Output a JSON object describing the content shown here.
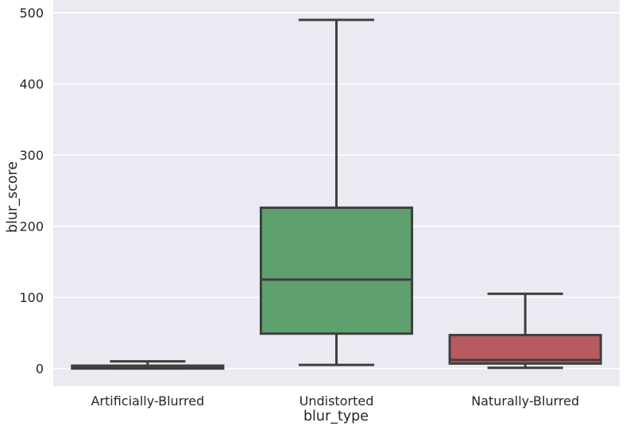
{
  "chart_data": {
    "type": "box",
    "xlabel": "blur_type",
    "ylabel": "blur_score",
    "ylim": [
      -25,
      518
    ],
    "yticks": [
      0,
      100,
      200,
      300,
      400,
      500
    ],
    "grid": true,
    "categories": [
      "Artificially-Blurred",
      "Undistorted",
      "Naturally-Blurred"
    ],
    "boxes": [
      {
        "category": "Artificially-Blurred",
        "whisker_low": 0,
        "q1": 0,
        "median": 2,
        "q3": 4,
        "whisker_high": 10,
        "color": "#4c72b0"
      },
      {
        "category": "Undistorted",
        "whisker_low": 5,
        "q1": 49,
        "median": 125,
        "q3": 226,
        "whisker_high": 490,
        "color": "#5ea06e"
      },
      {
        "category": "Naturally-Blurred",
        "whisker_low": 1,
        "q1": 7,
        "median": 12,
        "q3": 47,
        "whisker_high": 105,
        "color": "#b85a60"
      }
    ]
  },
  "colors": {
    "plot_background": "#eaeaf2",
    "grid": "#ffffff",
    "box_edge": "#3f3f3f"
  }
}
